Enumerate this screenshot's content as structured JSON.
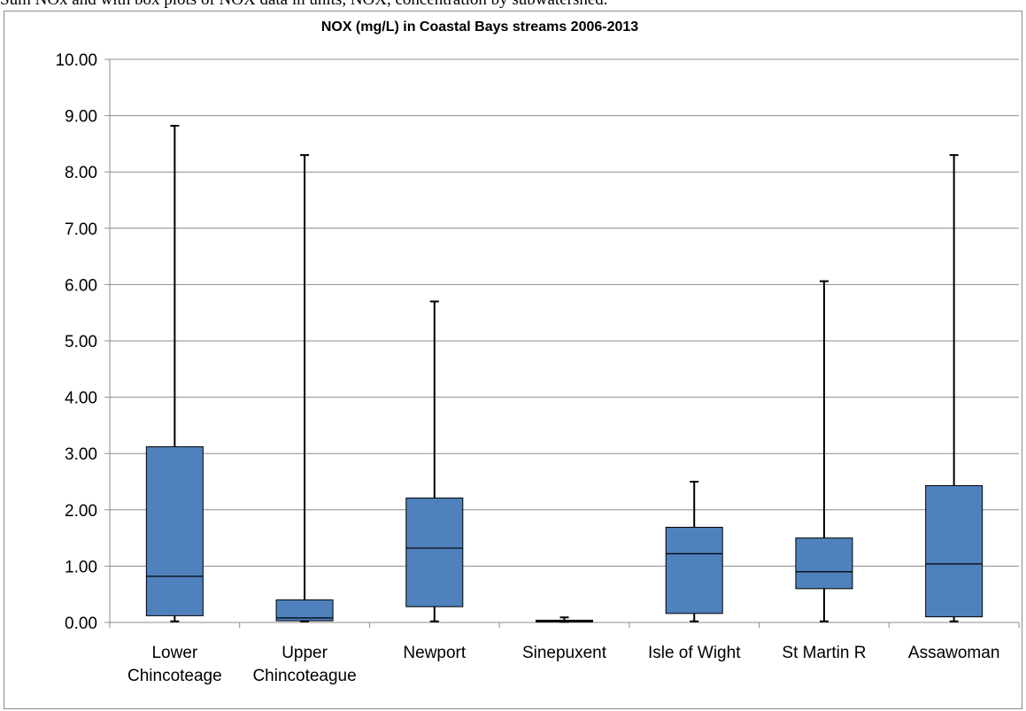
{
  "caption": "Sum NOx and with box plots of NOX data in units, NOX, concentration by subwatershed.",
  "chart_data": {
    "type": "boxplot",
    "title": "NOX (mg/L) in Coastal Bays streams 2006-2013",
    "xlabel": "",
    "ylabel": "",
    "ylim": [
      0,
      10
    ],
    "yticks": [
      "0.00",
      "1.00",
      "2.00",
      "3.00",
      "4.00",
      "5.00",
      "6.00",
      "7.00",
      "8.00",
      "9.00",
      "10.00"
    ],
    "grid": true,
    "box_color": "#4f81bd",
    "categories": [
      [
        "Lower",
        "Chincoteage"
      ],
      [
        "Upper",
        "Chincoteague"
      ],
      [
        "Newport"
      ],
      [
        "Sinepuxent"
      ],
      [
        "Isle of Wight"
      ],
      [
        "St Martin R"
      ],
      [
        "Assawoman"
      ]
    ],
    "boxes": [
      {
        "min": 0.02,
        "q1": 0.12,
        "median": 0.82,
        "q3": 3.12,
        "max": 8.82
      },
      {
        "min": 0.02,
        "q1": 0.03,
        "median": 0.08,
        "q3": 0.4,
        "max": 8.3
      },
      {
        "min": 0.02,
        "q1": 0.28,
        "median": 1.32,
        "q3": 2.21,
        "max": 5.7
      },
      {
        "min": 0.01,
        "q1": 0.01,
        "median": 0.02,
        "q3": 0.04,
        "max": 0.09
      },
      {
        "min": 0.02,
        "q1": 0.16,
        "median": 1.22,
        "q3": 1.69,
        "max": 2.5
      },
      {
        "min": 0.02,
        "q1": 0.6,
        "median": 0.9,
        "q3": 1.5,
        "max": 6.06
      },
      {
        "min": 0.02,
        "q1": 0.1,
        "median": 1.04,
        "q3": 2.43,
        "max": 8.3
      }
    ]
  }
}
